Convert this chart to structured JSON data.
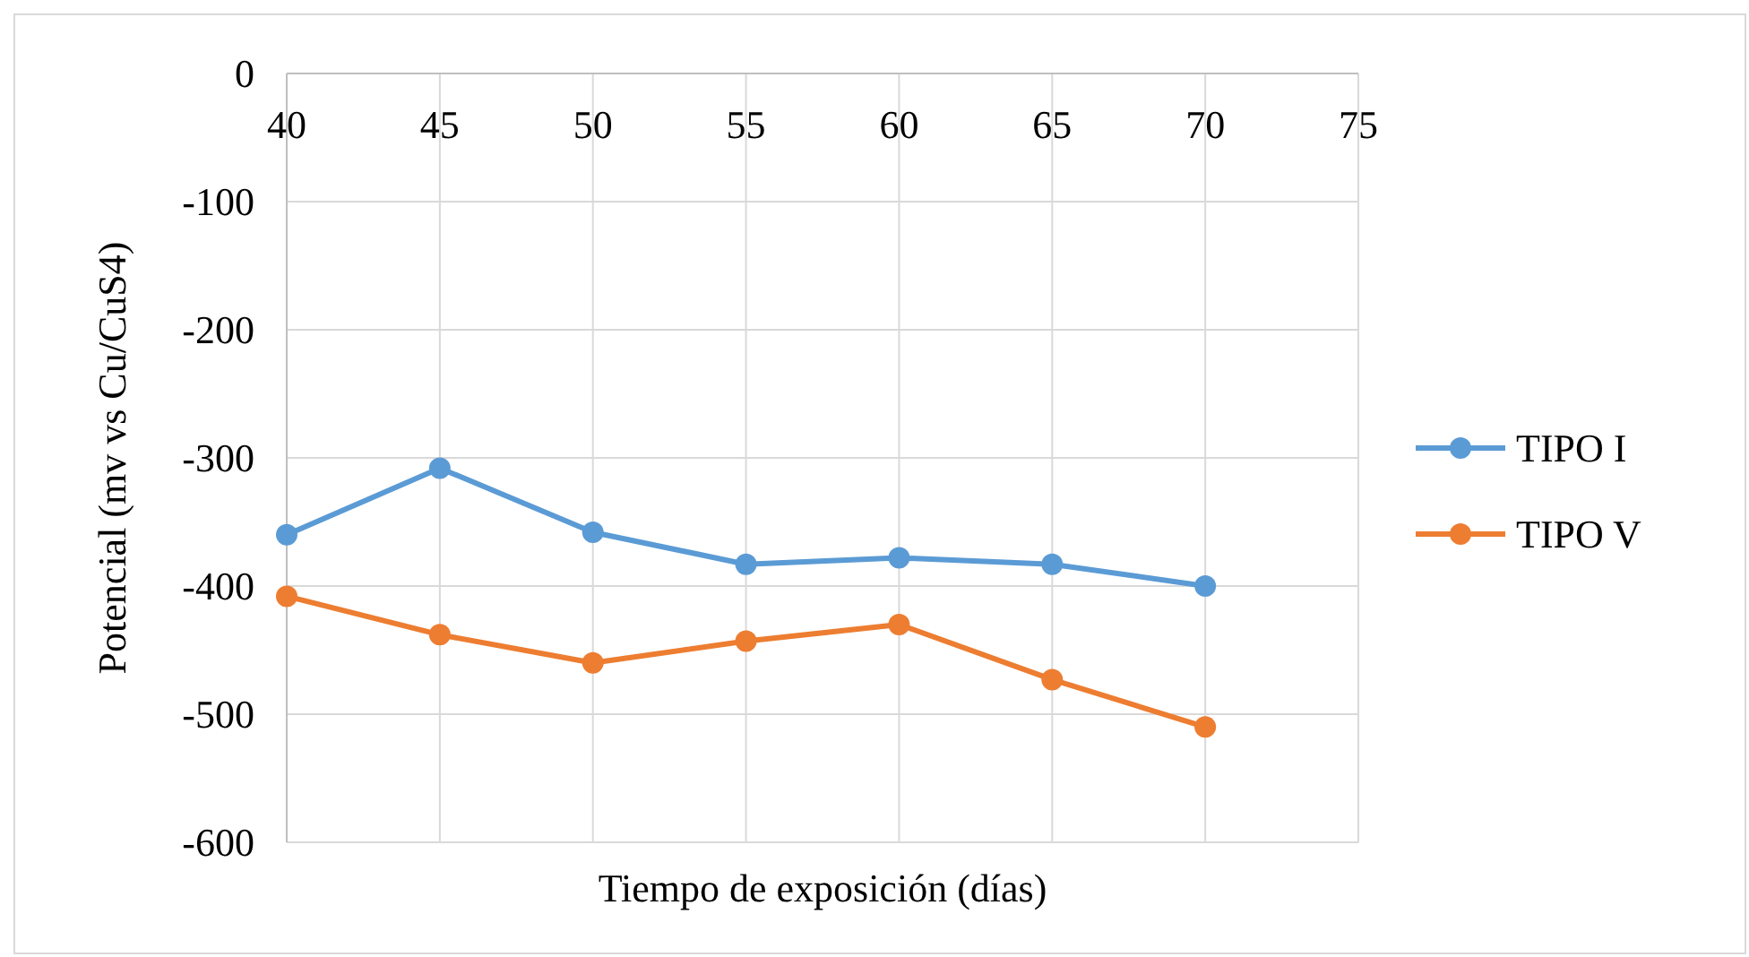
{
  "chart_data": {
    "type": "line",
    "xlabel": "Tiempo de exposición (días)",
    "ylabel": "Potencial (mv vs Cu/CuS4)",
    "x": [
      40,
      45,
      50,
      55,
      60,
      65,
      70
    ],
    "series": [
      {
        "name": "TIPO I",
        "color": "#5b9bd5",
        "values": [
          -360,
          -308,
          -358,
          -383,
          -378,
          -383,
          -400
        ]
      },
      {
        "name": "TIPO V",
        "color": "#ed7d31",
        "values": [
          -408,
          -438,
          -460,
          -443,
          -430,
          -473,
          -510
        ]
      }
    ],
    "xlim": [
      40,
      75
    ],
    "xticks": [
      40,
      45,
      50,
      55,
      60,
      65,
      70,
      75
    ],
    "ylim": [
      -600,
      0
    ],
    "yticks": [
      0,
      -100,
      -200,
      -300,
      -400,
      -500,
      -600
    ],
    "grid": true,
    "legend": "right",
    "marker": "circle",
    "line_style": "solid"
  }
}
